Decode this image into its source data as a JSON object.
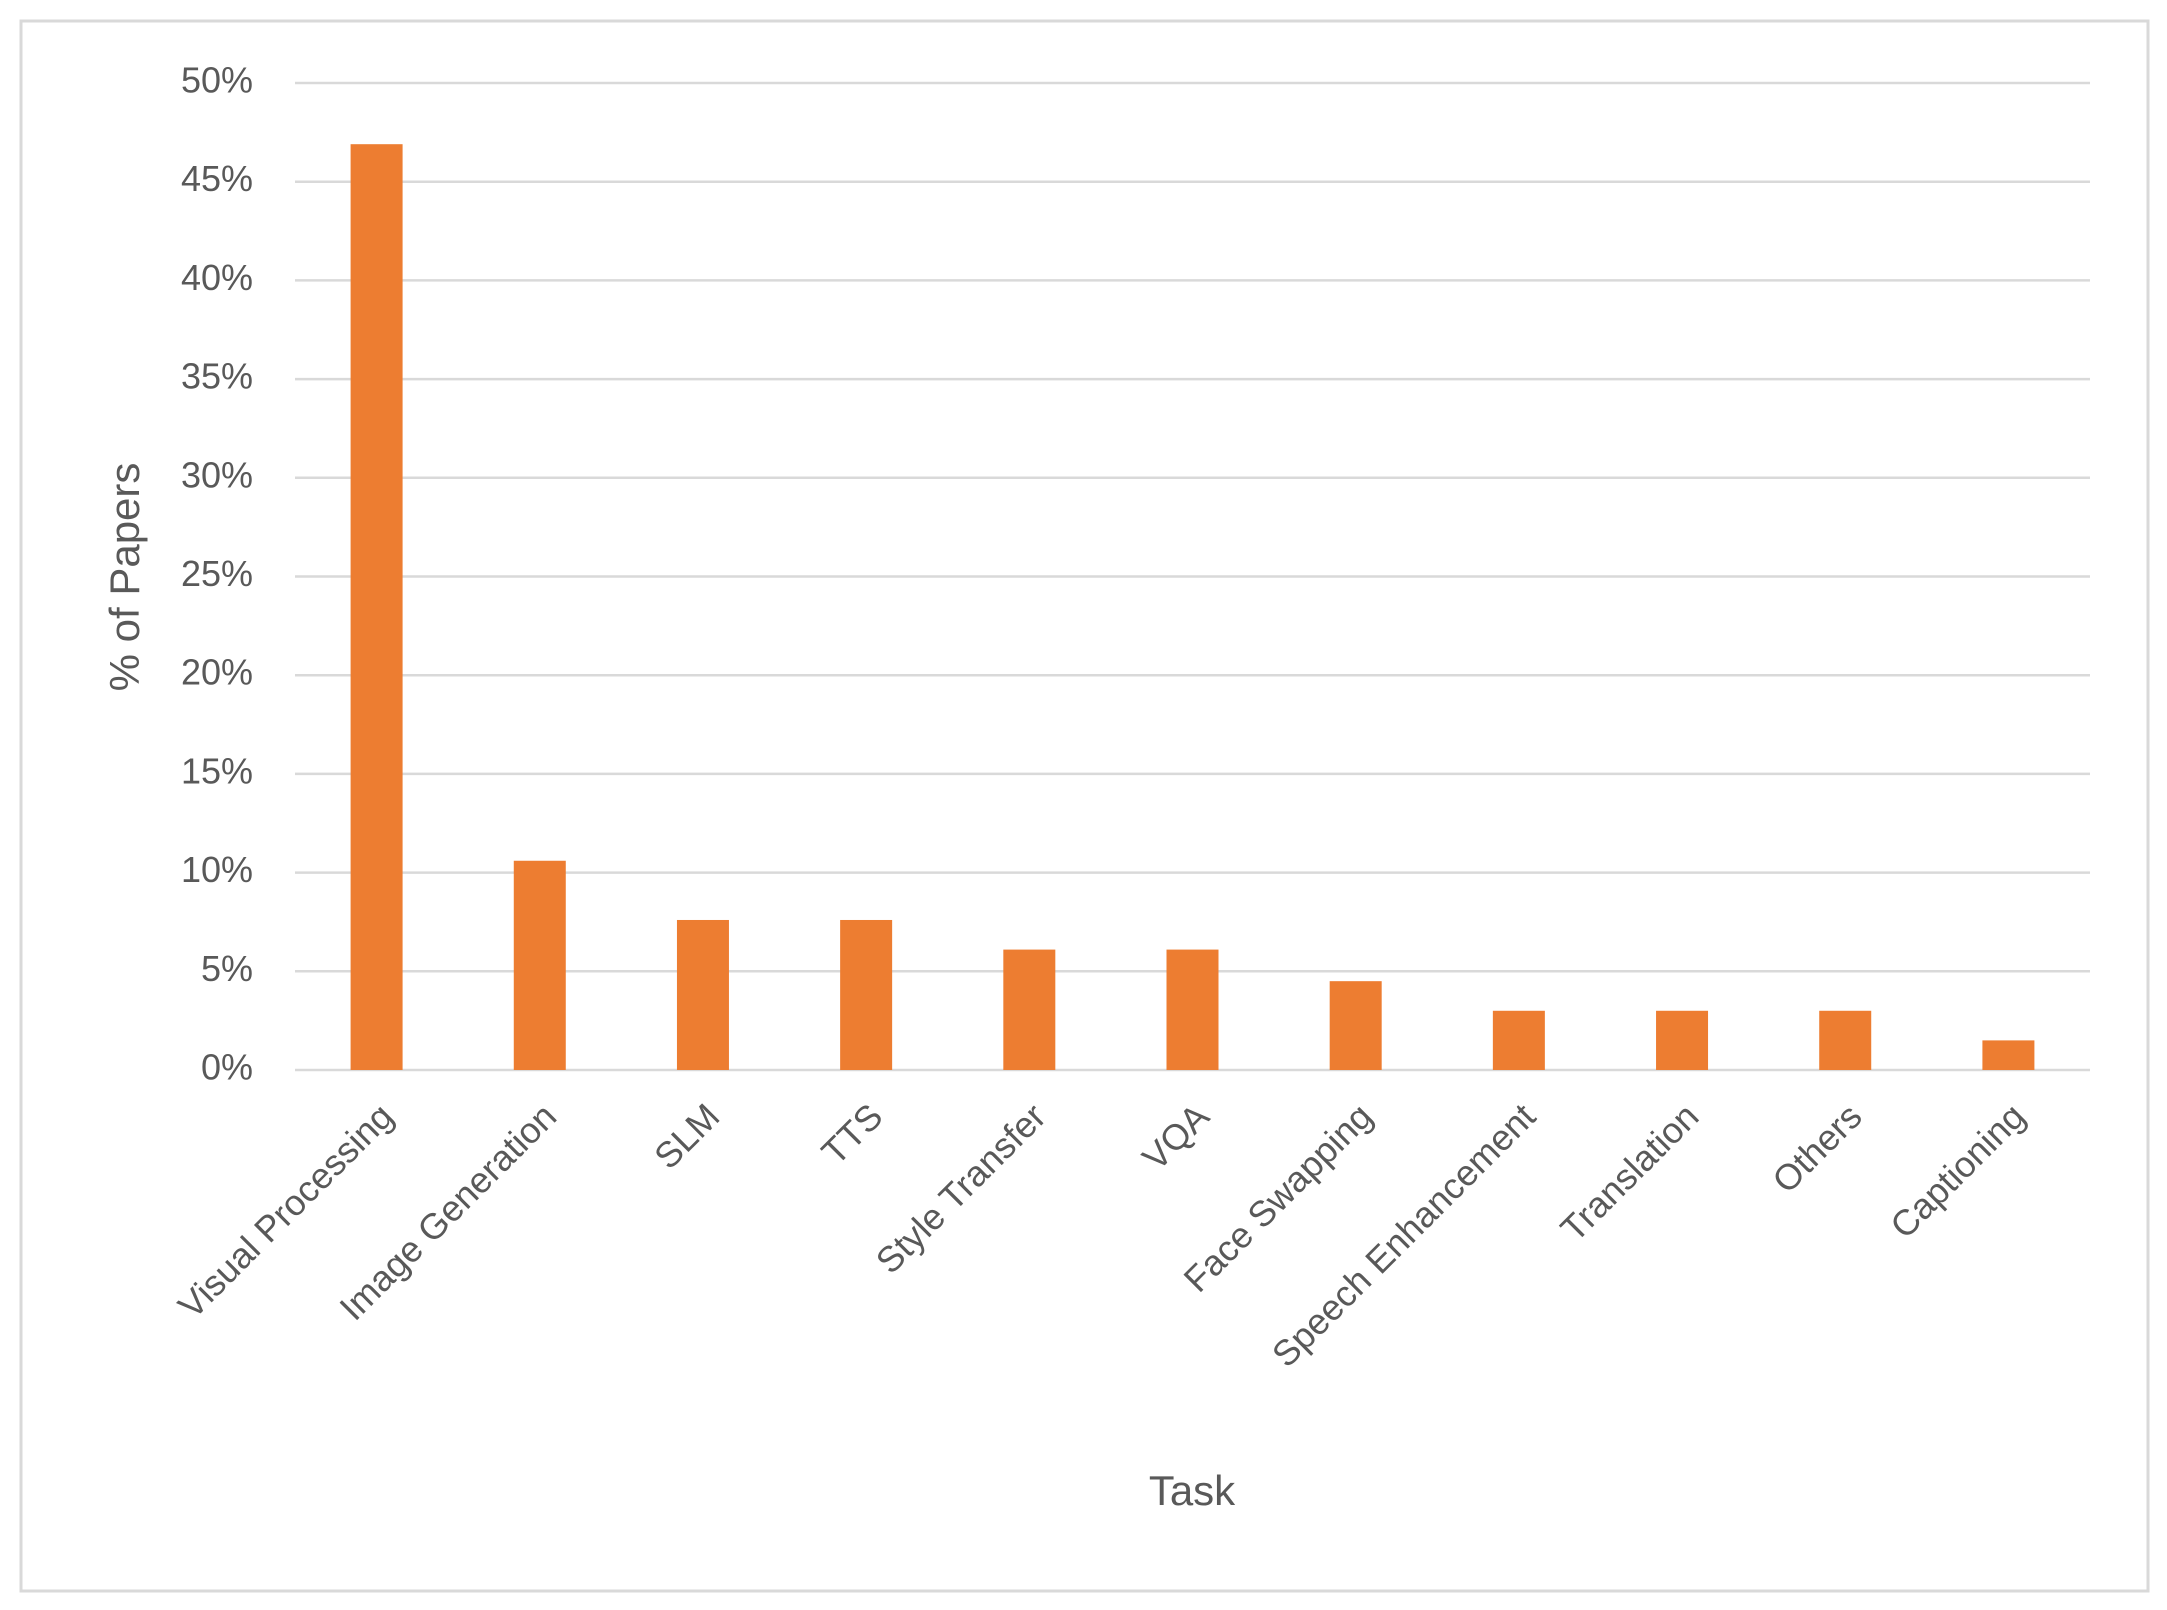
{
  "chart_data": {
    "type": "bar",
    "x_label": "Task",
    "y_label": "% of Papers",
    "categories": [
      "Visual Processing",
      "Image Generation",
      "SLM",
      "TTS",
      "Style Transfer",
      "VQA",
      "Face Swapping",
      "Speech Enhancement",
      "Translation",
      "Others",
      "Captioning"
    ],
    "values": [
      46.9,
      10.6,
      7.6,
      7.6,
      6.1,
      6.1,
      4.5,
      3.0,
      3.0,
      3.0,
      1.5
    ],
    "color": "#ed7d31",
    "ylim": [
      0,
      50
    ],
    "yticks": [
      {
        "value": 0,
        "label": "0%"
      },
      {
        "value": 5,
        "label": "5%"
      },
      {
        "value": 10,
        "label": "10%"
      },
      {
        "value": 15,
        "label": "15%"
      },
      {
        "value": 20,
        "label": "20%"
      },
      {
        "value": 25,
        "label": "25%"
      },
      {
        "value": 30,
        "label": "30%"
      },
      {
        "value": 35,
        "label": "35%"
      },
      {
        "value": 40,
        "label": "40%"
      },
      {
        "value": 45,
        "label": "45%"
      },
      {
        "value": 50,
        "label": "50%"
      }
    ],
    "grid": true
  }
}
